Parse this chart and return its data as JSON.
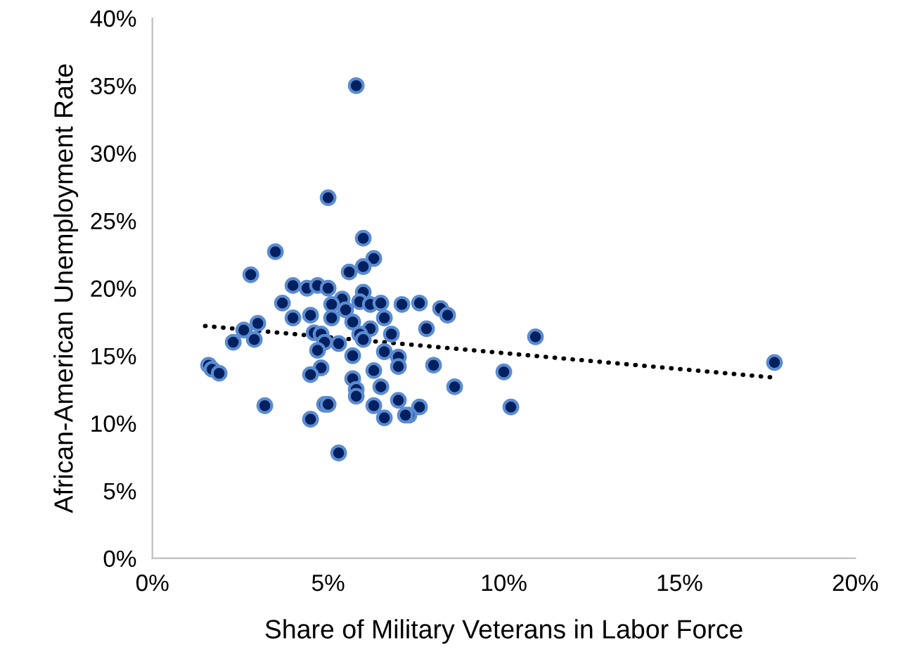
{
  "chart_data": {
    "type": "scatter",
    "xlabel": "Share of Military Veterans in Labor Force",
    "ylabel": "African-American Unemployment Rate",
    "series": [
      {
        "color": "#002060",
        "marker": "circle",
        "x": [
          5.8,
          5.0,
          6.0,
          3.5,
          6.3,
          6.0,
          5.6,
          2.8,
          4.0,
          4.4,
          4.7,
          5.0,
          5.4,
          6.0,
          5.9,
          6.2,
          6.5,
          7.1,
          7.6,
          8.2,
          8.4,
          3.7,
          5.1,
          5.5,
          5.1,
          4.5,
          4.0,
          5.7,
          6.6,
          7.8,
          6.2,
          3.0,
          2.6,
          2.3,
          2.9,
          4.6,
          4.8,
          5.9,
          6.8,
          6.0,
          4.9,
          5.3,
          4.7,
          6.6,
          5.7,
          7.0,
          1.6,
          1.7,
          1.9,
          4.8,
          4.5,
          6.3,
          7.0,
          8.0,
          5.7,
          5.8,
          5.8,
          6.5,
          8.6,
          3.2,
          4.9,
          5.0,
          6.3,
          7.0,
          7.6,
          7.3,
          7.2,
          6.6,
          4.5,
          5.3,
          10.9,
          10.0,
          10.2,
          17.7
        ],
        "values": [
          35.0,
          26.7,
          23.7,
          22.7,
          22.2,
          21.6,
          21.2,
          21.0,
          20.2,
          20.0,
          20.2,
          20.0,
          19.2,
          19.7,
          19.0,
          18.8,
          18.9,
          18.8,
          18.9,
          18.5,
          18.0,
          18.9,
          18.8,
          18.4,
          17.8,
          18.0,
          17.8,
          17.5,
          17.8,
          17.0,
          17.0,
          17.4,
          16.9,
          16.0,
          16.2,
          16.7,
          16.6,
          16.6,
          16.6,
          16.2,
          16.0,
          15.9,
          15.4,
          15.3,
          15.0,
          14.9,
          14.3,
          14.0,
          13.7,
          14.1,
          13.6,
          13.9,
          14.2,
          14.3,
          13.3,
          12.5,
          12.0,
          12.7,
          12.7,
          11.3,
          11.4,
          11.4,
          11.3,
          11.7,
          11.2,
          10.6,
          10.6,
          10.4,
          10.3,
          7.8,
          16.4,
          13.8,
          11.2,
          14.5
        ]
      },
      {
        "type": "line",
        "color": "#000000",
        "line_style": "dotted",
        "marker": "none",
        "x": [
          1.5,
          17.6
        ],
        "values": [
          17.2,
          13.4
        ]
      }
    ],
    "xlim": [
      0,
      20
    ],
    "ylim": [
      0,
      40
    ],
    "xticks": [
      {
        "value": 0,
        "label": "0%"
      },
      {
        "value": 5,
        "label": "5%"
      },
      {
        "value": 10,
        "label": "10%"
      },
      {
        "value": 15,
        "label": "15%"
      },
      {
        "value": 20,
        "label": "20%"
      }
    ],
    "yticks": [
      {
        "value": 0,
        "label": "0%"
      },
      {
        "value": 5,
        "label": "5%"
      },
      {
        "value": 10,
        "label": "10%"
      },
      {
        "value": 15,
        "label": "15%"
      },
      {
        "value": 20,
        "label": "20%"
      },
      {
        "value": 25,
        "label": "25%"
      },
      {
        "value": 30,
        "label": "30%"
      },
      {
        "value": 35,
        "label": "35%"
      },
      {
        "value": 40,
        "label": "40%"
      }
    ],
    "grid": false,
    "legend": false
  }
}
